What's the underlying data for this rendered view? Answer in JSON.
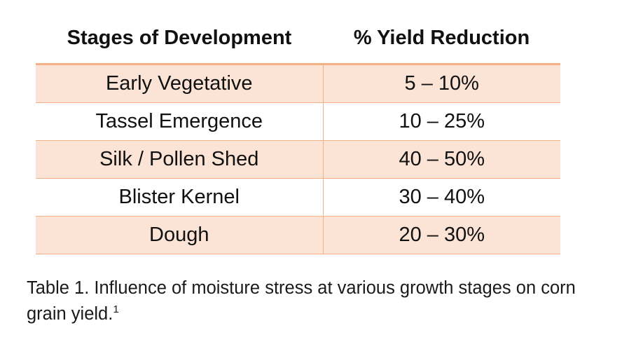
{
  "table": {
    "headers": {
      "stage": "Stages of Development",
      "reduction": "% Yield Reduction"
    },
    "rows": [
      {
        "stage": "Early Vegetative",
        "reduction": "5 – 10%"
      },
      {
        "stage": "Tassel Emergence",
        "reduction": "10 – 25%"
      },
      {
        "stage": "Silk / Pollen Shed",
        "reduction": "40 – 50%"
      },
      {
        "stage": "Blister Kernel",
        "reduction": "30 – 40%"
      },
      {
        "stage": "Dough",
        "reduction": "20 – 30%"
      }
    ]
  },
  "caption": {
    "text": "Table 1. Influence of moisture stress at various growth stages on corn grain yield.",
    "footnote_marker": "1"
  },
  "colors": {
    "row_shade": "#fbe4d5",
    "rule": "#f4b183"
  }
}
